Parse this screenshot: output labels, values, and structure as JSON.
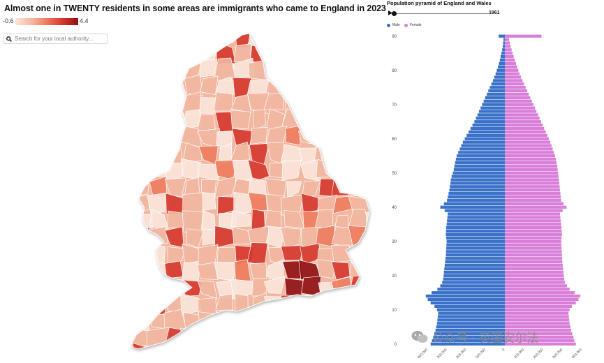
{
  "map_panel": {
    "title": "Almost one in TWENTY residents in some areas are immigrants who came to England in 2023",
    "legend_min": "-0.6",
    "legend_max": "4.4",
    "search_placeholder": "Search for your local authority...",
    "colors": {
      "low": "#fbe6dc",
      "base": "#f2b7a0",
      "mid": "#ee7b5e",
      "high": "#d6372c",
      "max": "#8f0f12",
      "border": "#ffffff"
    }
  },
  "pyramid_panel": {
    "year": "1961",
    "legend": {
      "male": "Male",
      "female": "Female"
    },
    "colors": {
      "male": "#3a72c9",
      "female": "#d97fd9"
    }
  },
  "chart_data": [
    {
      "type": "choropleth",
      "title": "Almost one in TWENTY residents in some areas are immigrants who came to England in 2023",
      "color_scale": {
        "min": -0.6,
        "max": 4.4
      }
    },
    {
      "type": "bar",
      "orientation": "horizontal",
      "title": "Population pyramid of England and Wales",
      "year": "1961",
      "y_ticks": [
        0,
        10,
        20,
        30,
        40,
        50,
        60,
        70,
        80,
        90
      ],
      "x_ticks": [
        "400,000",
        "300,000",
        "200,000",
        "100,000",
        "0",
        "100,000",
        "200,000",
        "300,000",
        "400,000"
      ],
      "ylim": [
        0,
        90
      ],
      "xlim": [
        -460000,
        460000
      ],
      "ages": [
        0,
        1,
        2,
        3,
        4,
        5,
        6,
        7,
        8,
        9,
        10,
        11,
        12,
        13,
        14,
        15,
        16,
        17,
        18,
        19,
        20,
        21,
        22,
        23,
        24,
        25,
        26,
        27,
        28,
        29,
        30,
        31,
        32,
        33,
        34,
        35,
        36,
        37,
        38,
        39,
        40,
        41,
        42,
        43,
        44,
        45,
        46,
        47,
        48,
        49,
        50,
        51,
        52,
        53,
        54,
        55,
        56,
        57,
        58,
        59,
        60,
        61,
        62,
        63,
        64,
        65,
        66,
        67,
        68,
        69,
        70,
        71,
        72,
        73,
        74,
        75,
        76,
        77,
        78,
        79,
        80,
        81,
        82,
        83,
        84,
        85,
        86,
        87,
        88,
        89,
        90
      ],
      "series": [
        {
          "name": "Male",
          "values": [
            385000,
            378000,
            372000,
            366000,
            360000,
            356000,
            352000,
            350000,
            348000,
            346000,
            352000,
            365000,
            385000,
            400000,
            410000,
            380000,
            350000,
            335000,
            325000,
            320000,
            318000,
            316000,
            314000,
            312000,
            310000,
            308000,
            306000,
            305000,
            304000,
            303000,
            302000,
            304000,
            306000,
            305000,
            304000,
            302000,
            300000,
            298000,
            296000,
            312000,
            335000,
            316000,
            300000,
            296000,
            292000,
            288000,
            285000,
            282000,
            280000,
            276000,
            270000,
            265000,
            262000,
            258000,
            254000,
            250000,
            242000,
            234000,
            226000,
            218000,
            208000,
            198000,
            188000,
            178000,
            168000,
            158000,
            150000,
            142000,
            134000,
            126000,
            118000,
            110000,
            102000,
            94000,
            86000,
            78000,
            70000,
            62000,
            55000,
            48000,
            42000,
            36000,
            31000,
            26000,
            22000,
            18000,
            14000,
            11000,
            9000,
            7000,
            32000
          ]
        },
        {
          "name": "Female",
          "values": [
            368000,
            360000,
            356000,
            350000,
            344000,
            340000,
            336000,
            334000,
            332000,
            330000,
            336000,
            348000,
            368000,
            382000,
            392000,
            362000,
            336000,
            322000,
            312000,
            308000,
            306000,
            304000,
            302000,
            300000,
            298000,
            297000,
            296000,
            295000,
            294000,
            293000,
            292000,
            294000,
            296000,
            295000,
            294000,
            292000,
            290000,
            288000,
            286000,
            300000,
            320000,
            304000,
            292000,
            290000,
            288000,
            286000,
            284000,
            282000,
            280000,
            278000,
            276000,
            274000,
            272000,
            268000,
            264000,
            260000,
            254000,
            248000,
            242000,
            236000,
            228000,
            220000,
            212000,
            204000,
            196000,
            188000,
            180000,
            172000,
            164000,
            156000,
            148000,
            140000,
            132000,
            124000,
            116000,
            108000,
            100000,
            92000,
            84000,
            76000,
            70000,
            64000,
            58000,
            52000,
            46000,
            40000,
            35000,
            30000,
            26000,
            22000,
            190000
          ]
        }
      ]
    }
  ]
}
